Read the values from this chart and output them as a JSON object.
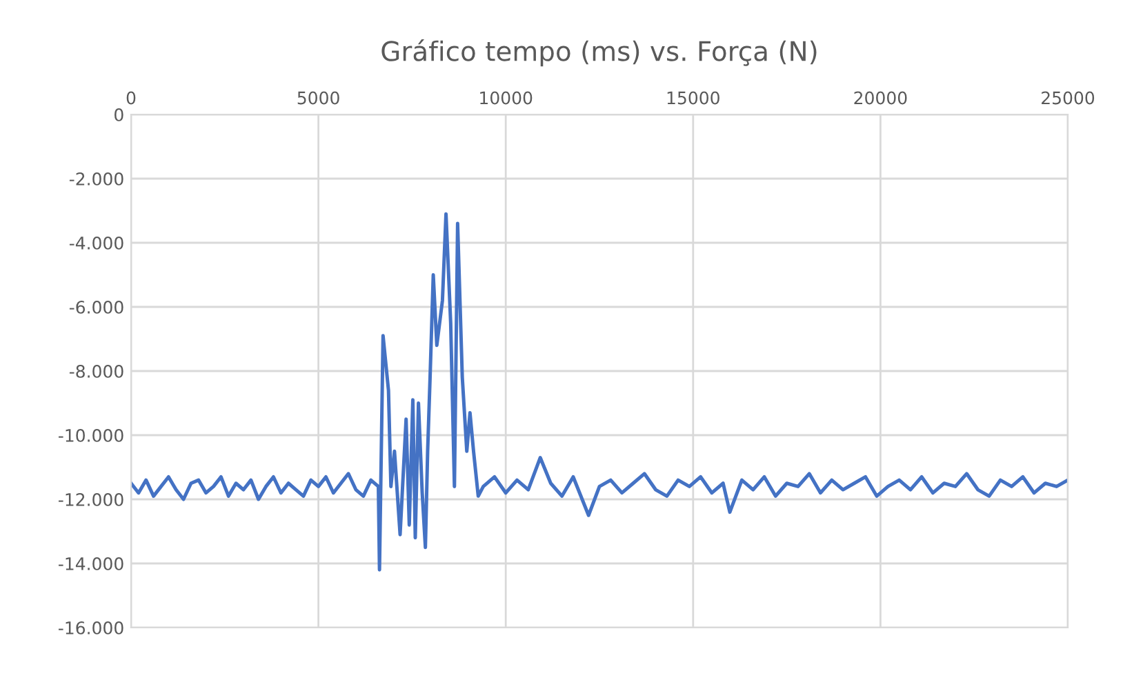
{
  "chart_data": {
    "type": "line",
    "title": "Gráfico tempo (ms) vs. Força (N)",
    "series": [
      {
        "color": "#4472c4",
        "x": [
          0,
          200,
          400,
          600,
          800,
          1000,
          1200,
          1400,
          1600,
          1800,
          2000,
          2200,
          2400,
          2600,
          2800,
          3000,
          3200,
          3400,
          3600,
          3800,
          4000,
          4200,
          4400,
          4600,
          4800,
          5000,
          5200,
          5400,
          5600,
          5800,
          6000,
          6200,
          6400,
          6600,
          6630,
          6725,
          6870,
          6935,
          7030,
          7180,
          7340,
          7425,
          7520,
          7585,
          7670,
          7770,
          7855,
          7915,
          7980,
          8065,
          8160,
          8310,
          8405,
          8530,
          8630,
          8715,
          8840,
          8960,
          9045,
          9140,
          9265,
          9400,
          9700,
          10000,
          10300,
          10600,
          10920,
          11200,
          11500,
          11800,
          12210,
          12500,
          12800,
          13100,
          13400,
          13700,
          14000,
          14300,
          14600,
          14900,
          15200,
          15500,
          15800,
          15980,
          16300,
          16600,
          16900,
          17200,
          17500,
          17800,
          18100,
          18400,
          18700,
          19000,
          19300,
          19600,
          19900,
          20200,
          20500,
          20800,
          21100,
          21400,
          21700,
          22000,
          22300,
          22600,
          22900,
          23200,
          23500,
          23800,
          24100,
          24400,
          24700,
          25000
        ],
        "values": [
          -11500,
          -11800,
          -11400,
          -11900,
          -11600,
          -11300,
          -11700,
          -12000,
          -11500,
          -11400,
          -11800,
          -11600,
          -11300,
          -11900,
          -11500,
          -11700,
          -11400,
          -12000,
          -11600,
          -11300,
          -11800,
          -11500,
          -11700,
          -11900,
          -11400,
          -11600,
          -11300,
          -11800,
          -11500,
          -11200,
          -11700,
          -11900,
          -11400,
          -11600,
          -14200,
          -6900,
          -8600,
          -11600,
          -10500,
          -13100,
          -9500,
          -12800,
          -8900,
          -13200,
          -9000,
          -11800,
          -13500,
          -10500,
          -8200,
          -5000,
          -7200,
          -5800,
          -3100,
          -6500,
          -11600,
          -3400,
          -8200,
          -10500,
          -9300,
          -10500,
          -11900,
          -11600,
          -11300,
          -11800,
          -11400,
          -11700,
          -10700,
          -11500,
          -11900,
          -11300,
          -12500,
          -11600,
          -11400,
          -11800,
          -11500,
          -11200,
          -11700,
          -11900,
          -11400,
          -11600,
          -11300,
          -11800,
          -11500,
          -12400,
          -11400,
          -11700,
          -11300,
          -11900,
          -11500,
          -11600,
          -11200,
          -11800,
          -11400,
          -11700,
          -11500,
          -11300,
          -11900,
          -11600,
          -11400,
          -11700,
          -11300,
          -11800,
          -11500,
          -11600,
          -11200,
          -11700,
          -11900,
          -11400,
          -11600,
          -11300,
          -11800,
          -11500,
          -11600,
          -11400
        ]
      }
    ],
    "xlim": [
      0,
      25000
    ],
    "xticks": [
      0,
      5000,
      10000,
      15000,
      20000,
      25000
    ],
    "ylim": [
      -16000,
      0
    ],
    "yticks": [
      0,
      {
        "value": -2000,
        "label": "-2.000"
      },
      {
        "value": -4000,
        "label": "-4.000"
      },
      {
        "value": -6000,
        "label": "-6.000"
      },
      {
        "value": -8000,
        "label": "-8.000"
      },
      {
        "value": -10000,
        "label": "-10.000"
      },
      {
        "value": -12000,
        "label": "-12.000"
      },
      {
        "value": -14000,
        "label": "-14.000"
      },
      {
        "value": -16000,
        "label": "-16.000"
      }
    ],
    "grid": true,
    "marker": "none",
    "line_style": "solid"
  }
}
